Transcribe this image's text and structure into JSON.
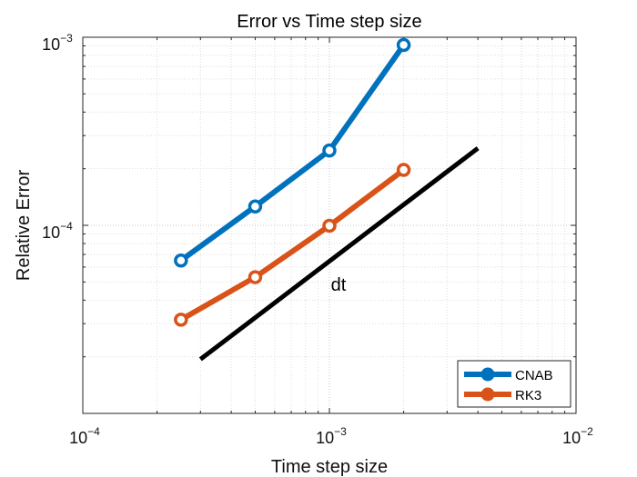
{
  "chart_data": {
    "type": "line",
    "title": "Error vs Time step size",
    "xlabel": "Time step size",
    "ylabel": "Relative Error",
    "xscale": "log",
    "yscale": "log",
    "xlim": [
      0.0001,
      0.01
    ],
    "ylim": [
      1e-05,
      0.001
    ],
    "x_ticks": [
      {
        "base": "10",
        "exp": "−4",
        "value": 0.0001
      },
      {
        "base": "10",
        "exp": "−3",
        "value": 0.001
      },
      {
        "base": "10",
        "exp": "−2",
        "value": 0.01
      }
    ],
    "y_ticks": [
      {
        "base": "10",
        "exp": "−4",
        "value": 0.0001
      },
      {
        "base": "10",
        "exp": "−3",
        "value": 0.001
      }
    ],
    "grid": true,
    "legend_position": "bottom-right",
    "series": [
      {
        "name": "CNAB",
        "color": "#0072BD",
        "x": [
          0.00025,
          0.0005,
          0.001,
          0.002
        ],
        "y": [
          6.5e-05,
          0.000126,
          0.00025,
          0.00091
        ]
      },
      {
        "name": "RK3",
        "color": "#D95319",
        "x": [
          0.00025,
          0.0005,
          0.001,
          0.002
        ],
        "y": [
          3.15e-05,
          5.3e-05,
          9.95e-05,
          0.000197
        ]
      }
    ],
    "reference_line": {
      "label": "dt",
      "color": "#000000",
      "x": [
        0.0003,
        0.004
      ],
      "y": [
        1.94e-05,
        0.000257
      ]
    }
  }
}
